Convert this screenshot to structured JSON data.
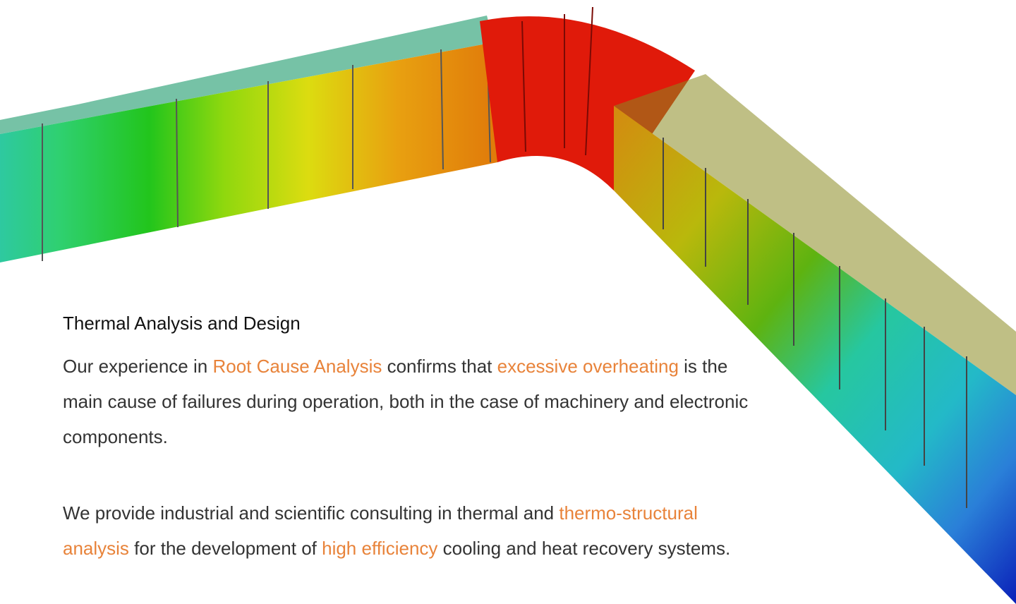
{
  "heading": "Thermal Analysis and Design",
  "paragraphs": [
    {
      "segments": [
        {
          "text": "Our experience in ",
          "link": false
        },
        {
          "text": "Root Cause Analysis",
          "link": true
        },
        {
          "text": " confirms that ",
          "link": false
        },
        {
          "text": "excessive overheating",
          "link": true
        },
        {
          "text": " is the main cause of failures during operation, both in the case of machinery and electronic components.",
          "link": false
        }
      ]
    },
    {
      "segments": [
        {
          "text": "We provide industrial and scientific consulting in thermal and ",
          "link": false
        },
        {
          "text": "thermo-structural analysis",
          "link": true
        },
        {
          "text": " for the development of ",
          "link": false
        },
        {
          "text": "high efficiency",
          "link": true
        },
        {
          "text": " cooling and heat recovery systems.",
          "link": false
        }
      ]
    }
  ]
}
